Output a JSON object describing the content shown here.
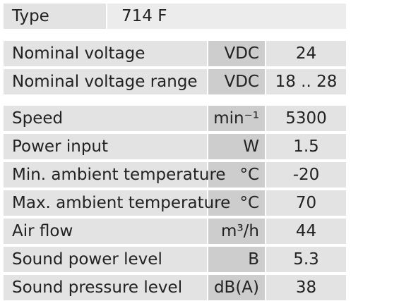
{
  "type_row": {
    "label": "Type",
    "value": "714 F"
  },
  "groups": [
    {
      "rows": [
        {
          "label": "Nominal voltage",
          "unit": "VDC",
          "value": "24"
        },
        {
          "label": "Nominal voltage range",
          "unit": "VDC",
          "value": "18 .. 28"
        }
      ]
    },
    {
      "rows": [
        {
          "label": "Speed",
          "unit": "min⁻¹",
          "value": "5300"
        },
        {
          "label": "Power input",
          "unit": "W",
          "value": "1.5"
        },
        {
          "label": "Min. ambient temperature",
          "unit": "°C",
          "value": "-20"
        },
        {
          "label": "Max. ambient temperature",
          "unit": "°C",
          "value": "70"
        },
        {
          "label": "Air flow",
          "unit": "m³/h",
          "value": "44"
        },
        {
          "label": "Sound power level",
          "unit": "B",
          "value": "5.3"
        },
        {
          "label": "Sound pressure level",
          "unit": "dB(A)",
          "value": "38"
        }
      ]
    }
  ]
}
